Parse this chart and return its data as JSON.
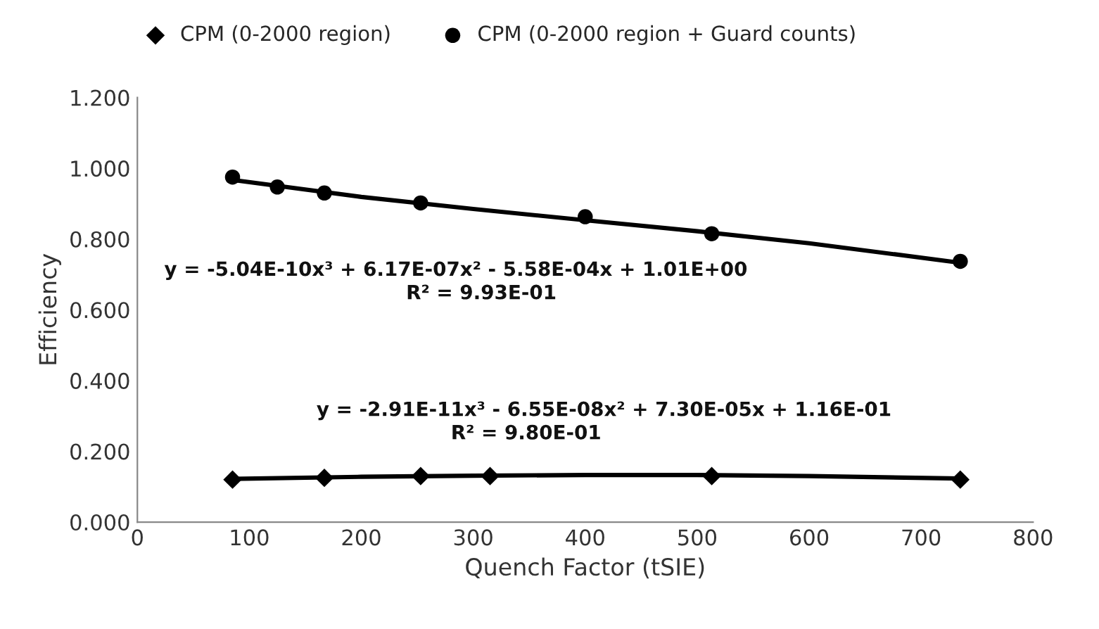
{
  "chart_data": {
    "type": "scatter",
    "xlabel": "Quench Factor (tSIE)",
    "ylabel": "Efficiency",
    "xlim": [
      0,
      800
    ],
    "xticks": [
      0,
      100,
      200,
      300,
      400,
      500,
      600,
      700,
      800
    ],
    "ylim": [
      0,
      1.2
    ],
    "yticks": [
      {
        "value": 0,
        "label": "0.000"
      },
      {
        "value": 0.2,
        "label": "0.200"
      },
      {
        "value": 0.4,
        "label": "0.400"
      },
      {
        "value": 0.6,
        "label": "0.600"
      },
      {
        "value": 0.8,
        "label": "0.800"
      },
      {
        "value": 1.0,
        "label": "1.000"
      },
      {
        "value": 1.2,
        "label": "1.200"
      }
    ],
    "grid": false,
    "legend": "top",
    "series": [
      {
        "name": "CPM (0-2000 region)",
        "marker": "diamond",
        "color": "#000000",
        "x": [
          85,
          167,
          253,
          315,
          513,
          735
        ],
        "values": [
          0.12,
          0.125,
          0.13,
          0.13,
          0.13,
          0.12
        ]
      },
      {
        "name": "CPM (0-2000 region + Guard counts)",
        "marker": "circle",
        "color": "#000000",
        "x": [
          85,
          125,
          167,
          253,
          400,
          513,
          735
        ],
        "values": [
          0.975,
          0.947,
          0.93,
          0.902,
          0.863,
          0.815,
          0.737
        ]
      },
      {
        "type": "line",
        "line_style": "solid",
        "color": "#000000",
        "x": [
          85,
          200,
          300,
          400,
          500,
          600,
          735
        ],
        "values": [
          0.122,
          0.128,
          0.131,
          0.133,
          0.133,
          0.13,
          0.123
        ]
      },
      {
        "type": "line",
        "line_style": "solid",
        "color": "#000000",
        "x": [
          85,
          200,
          300,
          400,
          500,
          600,
          735
        ],
        "values": [
          0.967,
          0.919,
          0.885,
          0.853,
          0.822,
          0.788,
          0.733
        ]
      }
    ],
    "annotations": [
      "y = -5.04E-10x³ + 6.17E-07x² - 5.58E-04x + 1.01E+00",
      "R² = 9.93E-01",
      "y = -2.91E-11x³ - 6.55E-08x² + 7.30E-05x + 1.16E-01",
      "R² = 9.80E-01"
    ]
  }
}
